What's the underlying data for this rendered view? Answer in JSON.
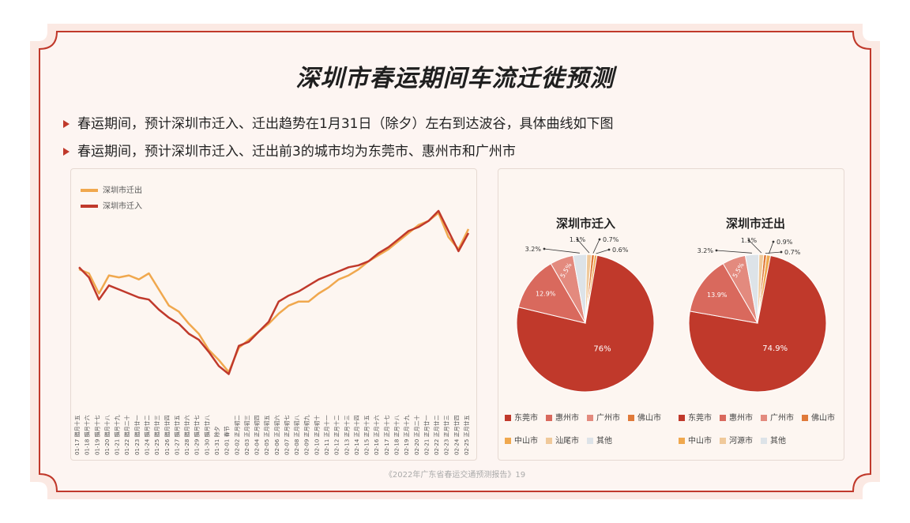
{
  "title": "深圳市春运期间车流迁徙预测",
  "bullets": [
    "春运期间，预计深圳市迁入、迁出趋势在1月31日（除夕）左右到达波谷，具体曲线如下图",
    "春运期间，预计深圳市迁入、迁出前3的城市均为东莞市、惠州市和广州市"
  ],
  "footer": "《2022年广东省春运交通预测报告》19",
  "colors": {
    "accent": "#c0392b",
    "out_line": "#f0a84e",
    "in_line": "#c0392b"
  },
  "chart_data": [
    {
      "type": "line",
      "legend": [
        "深圳市迁出",
        "深圳市迁入"
      ],
      "x": [
        "01-17 腊月十五",
        "01-18 腊月十六",
        "01-19 腊月十七",
        "01-20 腊月十八",
        "01-21 腊月十九",
        "01-22 腊月二十",
        "01-23 腊月廿一",
        "01-24 腊月廿二",
        "01-25 腊月廿三",
        "01-26 腊月廿四",
        "01-27 腊月廿五",
        "01-28 腊月廿六",
        "01-29 腊月廿七",
        "01-30 腊月廿八",
        "01-31 除夕",
        "02-01 春节",
        "02-02 正月初二",
        "02-03 正月初三",
        "02-04 正月初四",
        "02-05 正月初五",
        "02-06 正月初六",
        "02-07 正月初七",
        "02-08 正月初八",
        "02-09 正月初九",
        "02-10 正月初十",
        "02-11 正月十一",
        "02-12 正月十二",
        "02-13 正月十三",
        "02-14 正月十四",
        "02-15 正月十五",
        "02-16 正月十六",
        "02-17 正月十七",
        "02-18 正月十八",
        "02-19 正月十九",
        "02-20 正月二十",
        "02-21 正月廿一",
        "02-22 正月廿二",
        "02-23 正月廿三",
        "02-24 正月廿四",
        "02-25 正月廿五"
      ],
      "series": [
        {
          "name": "深圳市迁出",
          "values": [
            62,
            60,
            50,
            59,
            58,
            59,
            57,
            60,
            52,
            44,
            41,
            35,
            30,
            22,
            17,
            11,
            23,
            27,
            31,
            35,
            40,
            44,
            46,
            46,
            50,
            53,
            57,
            59,
            62,
            66,
            69,
            72,
            76,
            80,
            84,
            86,
            90,
            78,
            72,
            82
          ]
        },
        {
          "name": "深圳市迁入",
          "values": [
            63,
            58,
            47,
            54,
            52,
            50,
            48,
            47,
            42,
            38,
            35,
            30,
            27,
            21,
            14,
            10,
            24,
            26,
            31,
            36,
            46,
            49,
            51,
            54,
            57,
            59,
            61,
            63,
            64,
            66,
            70,
            73,
            77,
            81,
            83,
            86,
            91,
            81,
            71,
            80
          ]
        }
      ],
      "ylim": [
        0,
        100
      ],
      "grid": false
    },
    {
      "type": "pie",
      "title": "深圳市迁入",
      "slices": [
        {
          "label": "东莞市",
          "value": 76,
          "text": "76%"
        },
        {
          "label": "惠州市",
          "value": 12.9,
          "text": "12.9%"
        },
        {
          "label": "广州市",
          "value": 5.5,
          "text": "5.5%"
        },
        {
          "label": "佛山市",
          "value": 0.7,
          "text": "0.7%"
        },
        {
          "label": "中山市",
          "value": 0.6,
          "text": "0.6%"
        },
        {
          "label": "汕尾市",
          "value": 1.1,
          "text": "1.1%"
        },
        {
          "label": "其他",
          "value": 3.2,
          "text": "3.2%"
        }
      ],
      "legend": [
        "东莞市",
        "惠州市",
        "广州市",
        "佛山市",
        "中山市",
        "汕尾市",
        "其他"
      ],
      "colors": [
        "#c0392b",
        "#d9695d",
        "#e38a7e",
        "#e07a3a",
        "#f0a84e",
        "#f0c99a",
        "#dde3e8"
      ]
    },
    {
      "type": "pie",
      "title": "深圳市迁出",
      "slices": [
        {
          "label": "东莞市",
          "value": 74.9,
          "text": "74.9%"
        },
        {
          "label": "惠州市",
          "value": 13.9,
          "text": "13.9%"
        },
        {
          "label": "广州市",
          "value": 5.5,
          "text": "5.5%"
        },
        {
          "label": "佛山市",
          "value": 0.7,
          "text": "0.7%"
        },
        {
          "label": "中山市",
          "value": 0.9,
          "text": "0.9%"
        },
        {
          "label": "河源市",
          "value": 1.1,
          "text": "1.1%"
        },
        {
          "label": "其他",
          "value": 3.2,
          "text": "3.2%"
        }
      ],
      "legend": [
        "东莞市",
        "惠州市",
        "广州市",
        "佛山市",
        "中山市",
        "河源市",
        "其他"
      ],
      "colors": [
        "#c0392b",
        "#d9695d",
        "#e38a7e",
        "#e07a3a",
        "#f0a84e",
        "#f0c99a",
        "#dde3e8"
      ]
    }
  ]
}
